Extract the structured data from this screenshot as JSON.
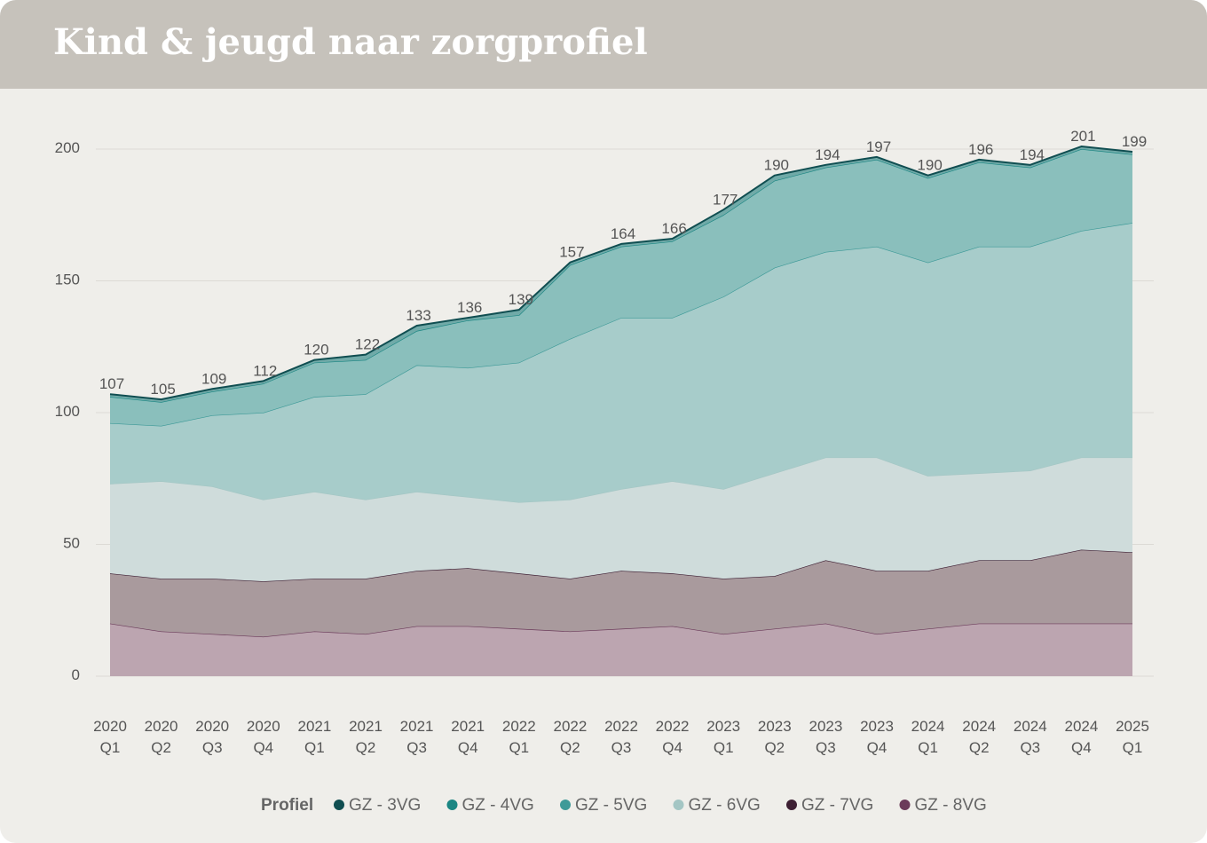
{
  "page": {
    "title": "Kind & jeugd naar zorgprofiel"
  },
  "chart_data": {
    "type": "area",
    "stacked": true,
    "title": "Kind & jeugd naar zorgprofiel",
    "xlabel": "",
    "ylabel": "",
    "ylim": [
      0,
      200
    ],
    "yticks": [
      0,
      50,
      100,
      150,
      200
    ],
    "grid": true,
    "legend_title": "Profiel",
    "legend_position": "bottom",
    "categories": [
      [
        "2020",
        "Q1"
      ],
      [
        "2020",
        "Q2"
      ],
      [
        "2020",
        "Q3"
      ],
      [
        "2020",
        "Q4"
      ],
      [
        "2021",
        "Q1"
      ],
      [
        "2021",
        "Q2"
      ],
      [
        "2021",
        "Q3"
      ],
      [
        "2021",
        "Q4"
      ],
      [
        "2022",
        "Q1"
      ],
      [
        "2022",
        "Q2"
      ],
      [
        "2022",
        "Q3"
      ],
      [
        "2022",
        "Q4"
      ],
      [
        "2023",
        "Q1"
      ],
      [
        "2023",
        "Q2"
      ],
      [
        "2023",
        "Q3"
      ],
      [
        "2023",
        "Q4"
      ],
      [
        "2024",
        "Q1"
      ],
      [
        "2024",
        "Q2"
      ],
      [
        "2024",
        "Q3"
      ],
      [
        "2024",
        "Q4"
      ],
      [
        "2025",
        "Q1"
      ]
    ],
    "totals": [
      107,
      105,
      109,
      112,
      120,
      122,
      133,
      136,
      139,
      157,
      164,
      166,
      177,
      190,
      194,
      197,
      190,
      196,
      194,
      201,
      199
    ],
    "series": [
      {
        "name": "GZ - 8VG",
        "color": "#6b3b5a",
        "fill": "#bca5b0",
        "values": [
          20,
          17,
          16,
          15,
          17,
          16,
          19,
          19,
          18,
          17,
          18,
          19,
          16,
          18,
          20,
          16,
          18,
          20,
          20,
          20,
          20
        ]
      },
      {
        "name": "GZ - 7VG",
        "color": "#3d1f33",
        "fill": "#a99a9d",
        "values": [
          19,
          20,
          21,
          21,
          20,
          21,
          21,
          22,
          21,
          20,
          22,
          20,
          21,
          20,
          24,
          24,
          22,
          24,
          24,
          28,
          27
        ]
      },
      {
        "name": "GZ - 6VG",
        "color": "#a4c6c4",
        "fill": "#cfdcdb",
        "values": [
          34,
          37,
          35,
          31,
          33,
          30,
          30,
          27,
          27,
          30,
          31,
          35,
          34,
          39,
          39,
          43,
          36,
          33,
          34,
          35,
          36
        ]
      },
      {
        "name": "GZ - 5VG",
        "color": "#3e9a98",
        "fill": "#a7ccca",
        "values": [
          23,
          21,
          27,
          33,
          36,
          40,
          48,
          49,
          53,
          61,
          65,
          62,
          73,
          78,
          78,
          80,
          81,
          86,
          85,
          86,
          89
        ]
      },
      {
        "name": "GZ - 4VG",
        "color": "#1b8683",
        "fill": "#8abfbc",
        "values": [
          10,
          9,
          9,
          11,
          13,
          13,
          13,
          18,
          18,
          28,
          27,
          29,
          31,
          33,
          32,
          33,
          32,
          32,
          30,
          31,
          26
        ]
      },
      {
        "name": "GZ - 3VG",
        "color": "#104e51",
        "fill": "#70aaa8",
        "values": [
          1,
          1,
          1,
          1,
          1,
          2,
          2,
          1,
          2,
          1,
          1,
          1,
          2,
          2,
          1,
          1,
          1,
          1,
          1,
          1,
          1
        ]
      }
    ],
    "legend_colors": {
      "GZ - 3VG": "#104e51",
      "GZ - 4VG": "#1b8683",
      "GZ - 5VG": "#3e9a98",
      "GZ - 6VG": "#a4c6c4",
      "GZ - 7VG": "#3d1f33",
      "GZ - 8VG": "#6b3b5a"
    },
    "legend_order": [
      "GZ - 3VG",
      "GZ - 4VG",
      "GZ - 5VG",
      "GZ - 6VG",
      "GZ - 7VG",
      "GZ - 8VG"
    ]
  }
}
